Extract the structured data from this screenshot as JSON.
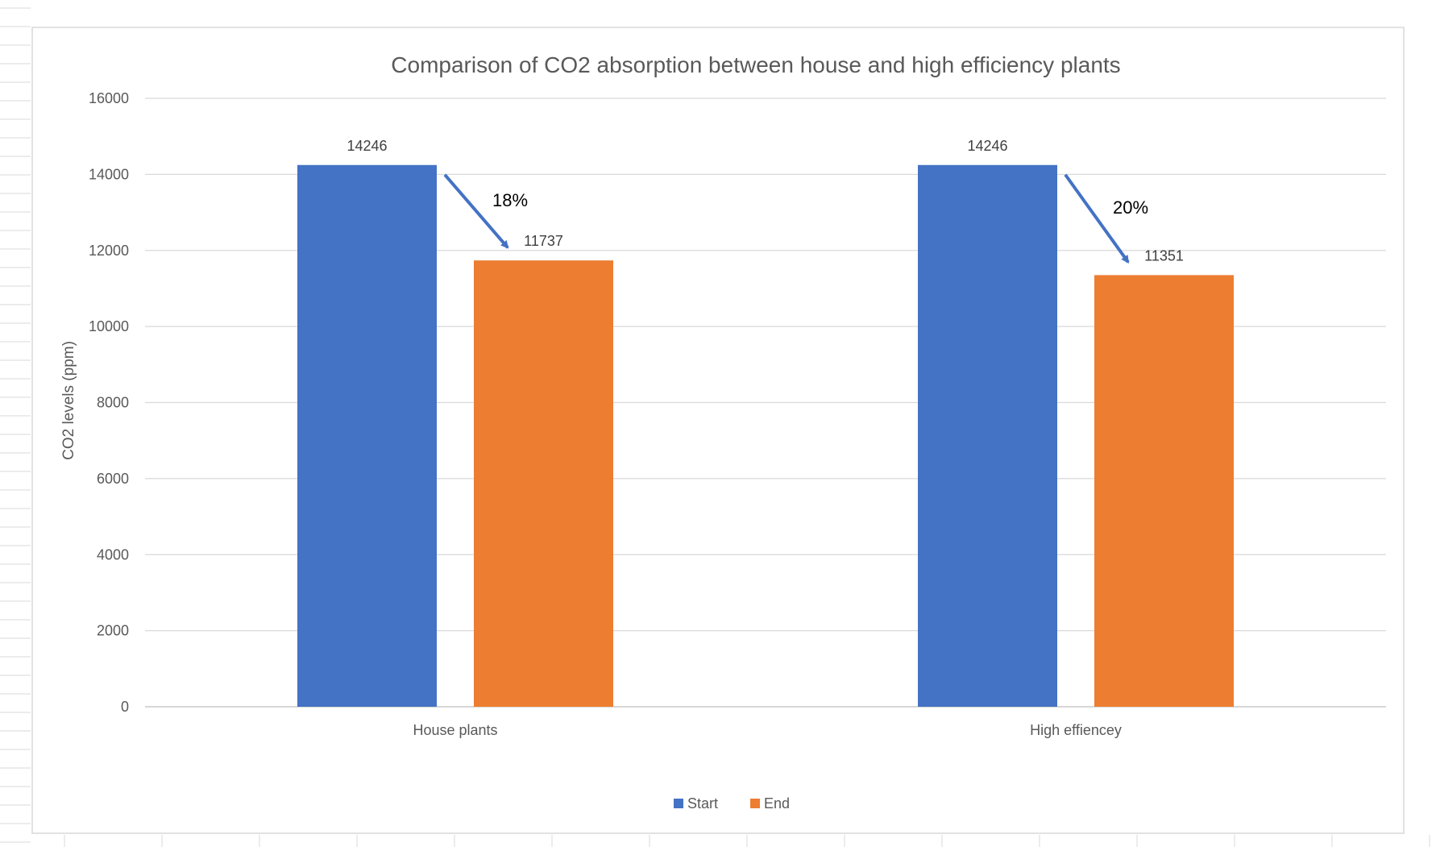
{
  "chart_data": {
    "type": "bar",
    "title": "Comparison of CO2 absorption between house and high efficiency plants",
    "ylabel": "CO2 levels (ppm)",
    "xlabel": "",
    "categories": [
      "House plants",
      "High effiencey"
    ],
    "series": [
      {
        "name": "Start",
        "color": "#4472c4",
        "values": [
          14246,
          14246
        ]
      },
      {
        "name": "End",
        "color": "#ed7d31",
        "values": [
          11737,
          11351
        ]
      }
    ],
    "ylim": [
      0,
      16000
    ],
    "yticks": [
      0,
      2000,
      4000,
      6000,
      8000,
      10000,
      12000,
      14000,
      16000
    ],
    "grid": true,
    "legend_position": "bottom",
    "data_labels": true,
    "annotations": [
      {
        "text": "18%",
        "category": "House plants",
        "arrow_from": "Start",
        "arrow_to": "End"
      },
      {
        "text": "20%",
        "category": "High effiencey",
        "arrow_from": "Start",
        "arrow_to": "End"
      }
    ],
    "arrow_color": "#4472c4"
  }
}
